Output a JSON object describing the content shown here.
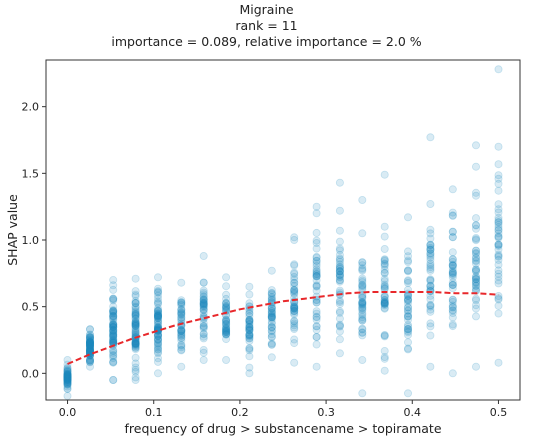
{
  "chart_data": {
    "type": "scatter",
    "title": "Migraine",
    "subtitle_rank": "rank = 11",
    "subtitle_importance": "importance = 0.089, relative importance = 2.0 %",
    "xlabel": "frequency of drug > substancename > topiramate",
    "ylabel": "SHAP value",
    "xlim": [
      -0.025,
      0.525
    ],
    "ylim": [
      -0.2,
      2.35
    ],
    "xticks": [
      0.0,
      0.1,
      0.2,
      0.3,
      0.4,
      0.5
    ],
    "xtick_labels": [
      "0.0",
      "0.1",
      "0.2",
      "0.3",
      "0.4",
      "0.5"
    ],
    "yticks": [
      0.0,
      0.5,
      1.0,
      1.5,
      2.0
    ],
    "ytick_labels": [
      "0.0",
      "0.5",
      "1.0",
      "1.5",
      "2.0"
    ],
    "grid": false,
    "point_color": "#1f8bc0",
    "trend_color": "#e8282b",
    "columns": [
      {
        "x": 0.0,
        "ymin": -0.17,
        "ymax": 0.1
      },
      {
        "x": 0.026,
        "ymin": 0.05,
        "ymax": 0.33
      },
      {
        "x": 0.053,
        "ymin": -0.05,
        "ymax": 0.7
      },
      {
        "x": 0.079,
        "ymin": -0.05,
        "ymax": 0.71
      },
      {
        "x": 0.105,
        "ymin": 0.0,
        "ymax": 0.72
      },
      {
        "x": 0.132,
        "ymin": 0.05,
        "ymax": 0.68
      },
      {
        "x": 0.158,
        "ymin": 0.1,
        "ymax": 0.88
      },
      {
        "x": 0.184,
        "ymin": 0.1,
        "ymax": 0.72
      },
      {
        "x": 0.211,
        "ymin": 0.0,
        "ymax": 0.65
      },
      {
        "x": 0.237,
        "ymin": 0.12,
        "ymax": 0.77
      },
      {
        "x": 0.263,
        "ymin": 0.08,
        "ymax": 1.0
      },
      {
        "x": 0.289,
        "ymin": 0.05,
        "ymax": 1.2
      },
      {
        "x": 0.316,
        "ymin": 0.15,
        "ymax": 1.22
      },
      {
        "x": 0.342,
        "ymin": 0.1,
        "ymax": 1.05
      },
      {
        "x": 0.368,
        "ymin": 0.02,
        "ymax": 1.1
      },
      {
        "x": 0.395,
        "ymin": -0.15,
        "ymax": 1.17
      },
      {
        "x": 0.421,
        "ymin": 0.05,
        "ymax": 1.27
      },
      {
        "x": 0.447,
        "ymin": 0.0,
        "ymax": 1.38
      },
      {
        "x": 0.474,
        "ymin": 0.05,
        "ymax": 1.55
      },
      {
        "x": 0.5,
        "ymin": 0.08,
        "ymax": 1.7
      }
    ],
    "outliers": [
      {
        "x": 0.5,
        "y": 2.28
      },
      {
        "x": 0.421,
        "y": 1.77
      },
      {
        "x": 0.474,
        "y": 1.71
      },
      {
        "x": 0.368,
        "y": 1.49
      },
      {
        "x": 0.316,
        "y": 1.43
      },
      {
        "x": 0.342,
        "y": 1.3
      },
      {
        "x": 0.289,
        "y": 1.25
      },
      {
        "x": 0.263,
        "y": 1.02
      },
      {
        "x": 0.342,
        "y": -0.15
      },
      {
        "x": 0.026,
        "y": 0.33
      },
      {
        "x": 0.053,
        "y": -0.05
      }
    ],
    "trend": {
      "x": [
        0.0,
        0.025,
        0.05,
        0.075,
        0.1,
        0.125,
        0.15,
        0.175,
        0.2,
        0.225,
        0.25,
        0.275,
        0.3,
        0.325,
        0.35,
        0.375,
        0.4,
        0.425,
        0.45,
        0.475,
        0.5
      ],
      "y": [
        0.07,
        0.14,
        0.2,
        0.26,
        0.31,
        0.36,
        0.4,
        0.44,
        0.48,
        0.51,
        0.54,
        0.56,
        0.58,
        0.6,
        0.61,
        0.61,
        0.61,
        0.61,
        0.6,
        0.6,
        0.59
      ]
    }
  }
}
